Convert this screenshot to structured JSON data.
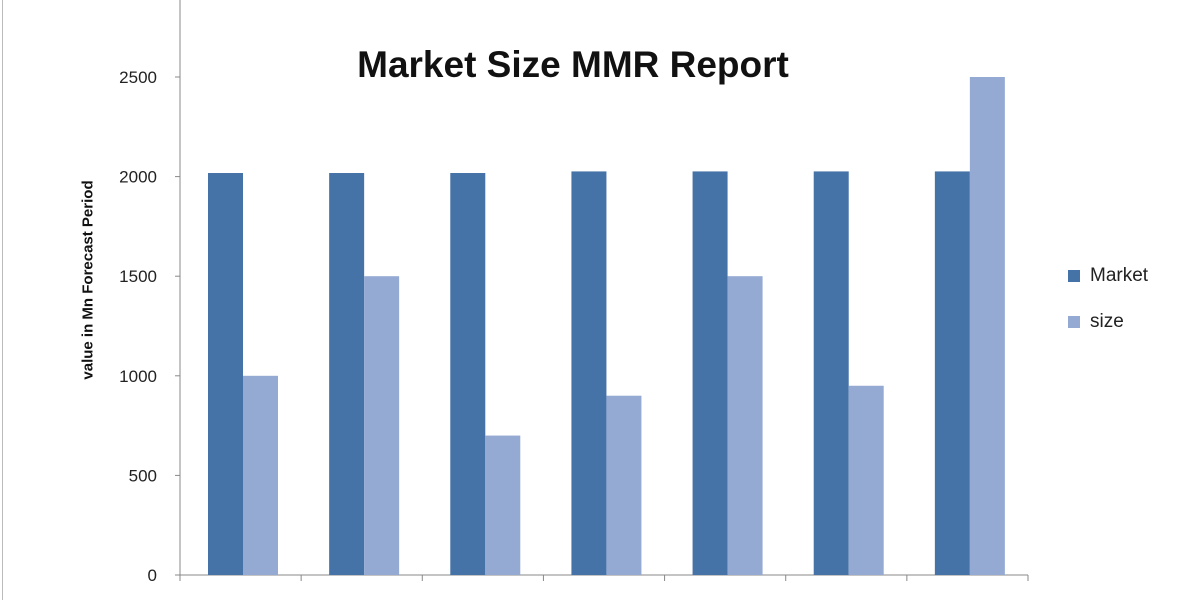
{
  "chart_data": {
    "type": "bar",
    "title": "Market Size MMR Report",
    "xlabel": "",
    "ylabel": "value in Mn  Forecast  Period",
    "ylim": [
      0,
      2500
    ],
    "yticks": [
      0,
      500,
      1000,
      1500,
      2000,
      2500
    ],
    "categories": [
      "",
      "",
      "",
      "",
      "",
      "",
      ""
    ],
    "series": [
      {
        "name": "Market",
        "color": "#4572a7",
        "values": [
          2018,
          2018,
          2018,
          2026,
          2026,
          2026,
          2026
        ]
      },
      {
        "name": "size",
        "color": "#94aad3",
        "values": [
          1000,
          1500,
          700,
          900,
          1500,
          950,
          2500
        ]
      }
    ],
    "grid": false,
    "legend": "right"
  }
}
